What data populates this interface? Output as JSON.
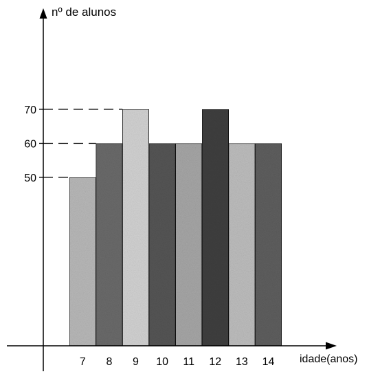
{
  "chart_data": {
    "type": "bar",
    "ylabel": "nº de alunos",
    "xlabel": "idade(anos)",
    "categories": [
      "7",
      "8",
      "9",
      "10",
      "11",
      "12",
      "13",
      "14"
    ],
    "values": [
      50,
      60,
      70,
      60,
      60,
      70,
      60,
      60
    ],
    "yticks": [
      50,
      60,
      70
    ],
    "ylim": [
      0,
      70
    ],
    "grid": false,
    "reference_lines": "dashed lines at 50, 60 and 70",
    "bar_colors": [
      "#b8b8b8",
      "#6a6a6a",
      "#d2d2d2",
      "#555555",
      "#a6a6a6",
      "#3f3f3f",
      "#bdbdbd",
      "#5e5e5e"
    ]
  }
}
